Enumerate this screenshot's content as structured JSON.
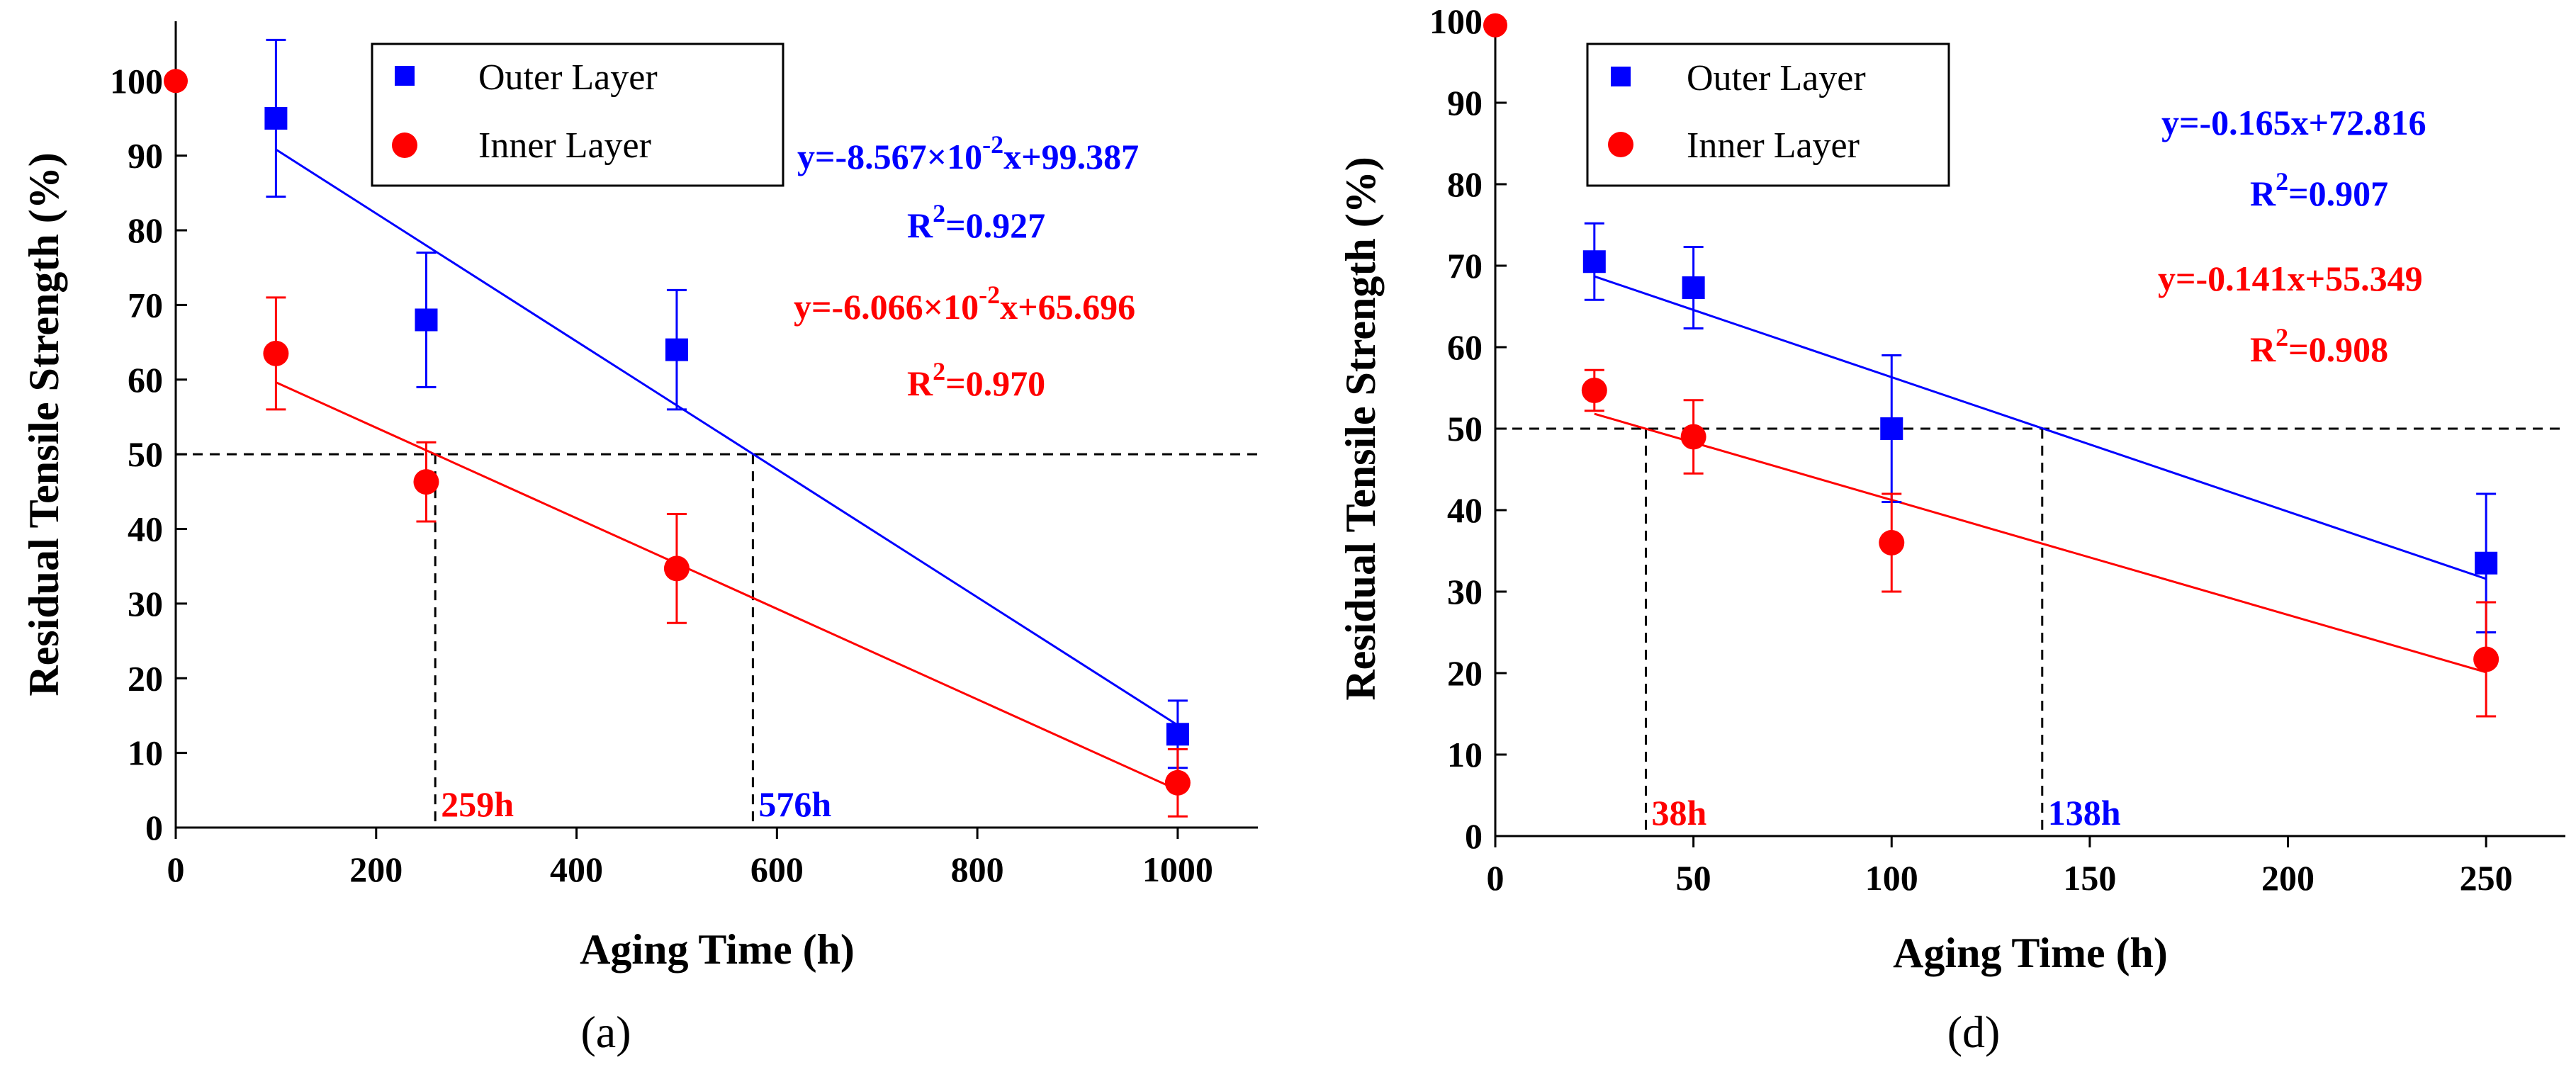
{
  "chart_data": [
    {
      "type": "scatter",
      "panel": "a",
      "caption": "(a)",
      "xlabel": "Aging Time (h)",
      "ylabel": "Residual Tensile Strength (%)",
      "xlim": [
        0,
        1080
      ],
      "ylim": [
        0,
        108
      ],
      "xticks": [
        0,
        200,
        400,
        600,
        800,
        1000
      ],
      "yticks": [
        0,
        10,
        20,
        30,
        40,
        50,
        60,
        70,
        80,
        90,
        100
      ],
      "origin_point": {
        "x": 0,
        "y": 100,
        "color": "#ff0000"
      },
      "series": [
        {
          "name": "Outer Layer",
          "marker": "square",
          "color": "#0000ff",
          "x": [
            100,
            250,
            500,
            1000
          ],
          "y": [
            95,
            68,
            64,
            12.5
          ],
          "err": [
            10.5,
            9,
            8,
            4.5
          ],
          "fit": {
            "x": [
              100,
              1000
            ],
            "slope": -0.08567,
            "intercept": 99.387
          },
          "equation_pre": "y=-8.567×10",
          "equation_exp": "-2",
          "equation_post": "x+99.387",
          "r2_pre": "R",
          "r2_sup": "2",
          "r2_post": "=0.927"
        },
        {
          "name": "Inner Layer",
          "marker": "circle",
          "color": "#ff0000",
          "x": [
            100,
            250,
            500,
            1000
          ],
          "y": [
            63.5,
            46.3,
            34.7,
            6
          ],
          "err": [
            7.5,
            5.3,
            7.3,
            4.5
          ],
          "fit": {
            "x": [
              100,
              1000
            ],
            "slope": -0.06066,
            "intercept": 65.696
          },
          "equation_pre": "y=-6.066×10",
          "equation_exp": "-2",
          "equation_post": "x+65.696",
          "r2_pre": "R",
          "r2_sup": "2",
          "r2_post": "=0.970"
        }
      ],
      "threshold_y": 50,
      "crossings": [
        {
          "x": 259,
          "label": "259h",
          "color": "#ff0000"
        },
        {
          "x": 576,
          "label": "576h",
          "color": "#0000ff"
        }
      ],
      "legend": "top-left"
    },
    {
      "type": "scatter",
      "panel": "d",
      "caption": "(d)",
      "xlabel": "Aging Time (h)",
      "ylabel": "Residual Tensile Strength (%)",
      "xlim": [
        0,
        270
      ],
      "ylim": [
        0,
        100
      ],
      "xticks": [
        0,
        50,
        100,
        150,
        200,
        250
      ],
      "yticks": [
        0,
        10,
        20,
        30,
        40,
        50,
        60,
        70,
        80,
        90,
        100
      ],
      "origin_point": {
        "x": 0,
        "y": 99.5,
        "color": "#ff0000"
      },
      "series": [
        {
          "name": "Outer Layer",
          "marker": "square",
          "color": "#0000ff",
          "x": [
            25,
            50,
            100,
            250
          ],
          "y": [
            70.5,
            67.3,
            50,
            33.5
          ],
          "err": [
            4.7,
            5,
            9,
            8.5
          ],
          "fit": {
            "x": [
              25,
              250
            ],
            "slope": -0.165,
            "intercept": 72.816
          },
          "equation_pre": "y=-0.165x+72.816",
          "equation_exp": "",
          "equation_post": "",
          "r2_pre": "R",
          "r2_sup": "2",
          "r2_post": "=0.907"
        },
        {
          "name": "Inner Layer",
          "marker": "circle",
          "color": "#ff0000",
          "x": [
            25,
            50,
            100,
            250
          ],
          "y": [
            54.7,
            49,
            36,
            21.7
          ],
          "err": [
            2.5,
            4.5,
            6,
            7
          ],
          "fit": {
            "x": [
              25,
              250
            ],
            "slope": -0.141,
            "intercept": 55.349
          },
          "equation_pre": "y=-0.141x+55.349",
          "equation_exp": "",
          "equation_post": "",
          "r2_pre": "R",
          "r2_sup": "2",
          "r2_post": "=0.908"
        }
      ],
      "threshold_y": 50,
      "crossings": [
        {
          "x": 38,
          "label": "38h",
          "color": "#ff0000"
        },
        {
          "x": 138,
          "label": "138h",
          "color": "#0000ff"
        }
      ],
      "legend": "top-left"
    }
  ]
}
